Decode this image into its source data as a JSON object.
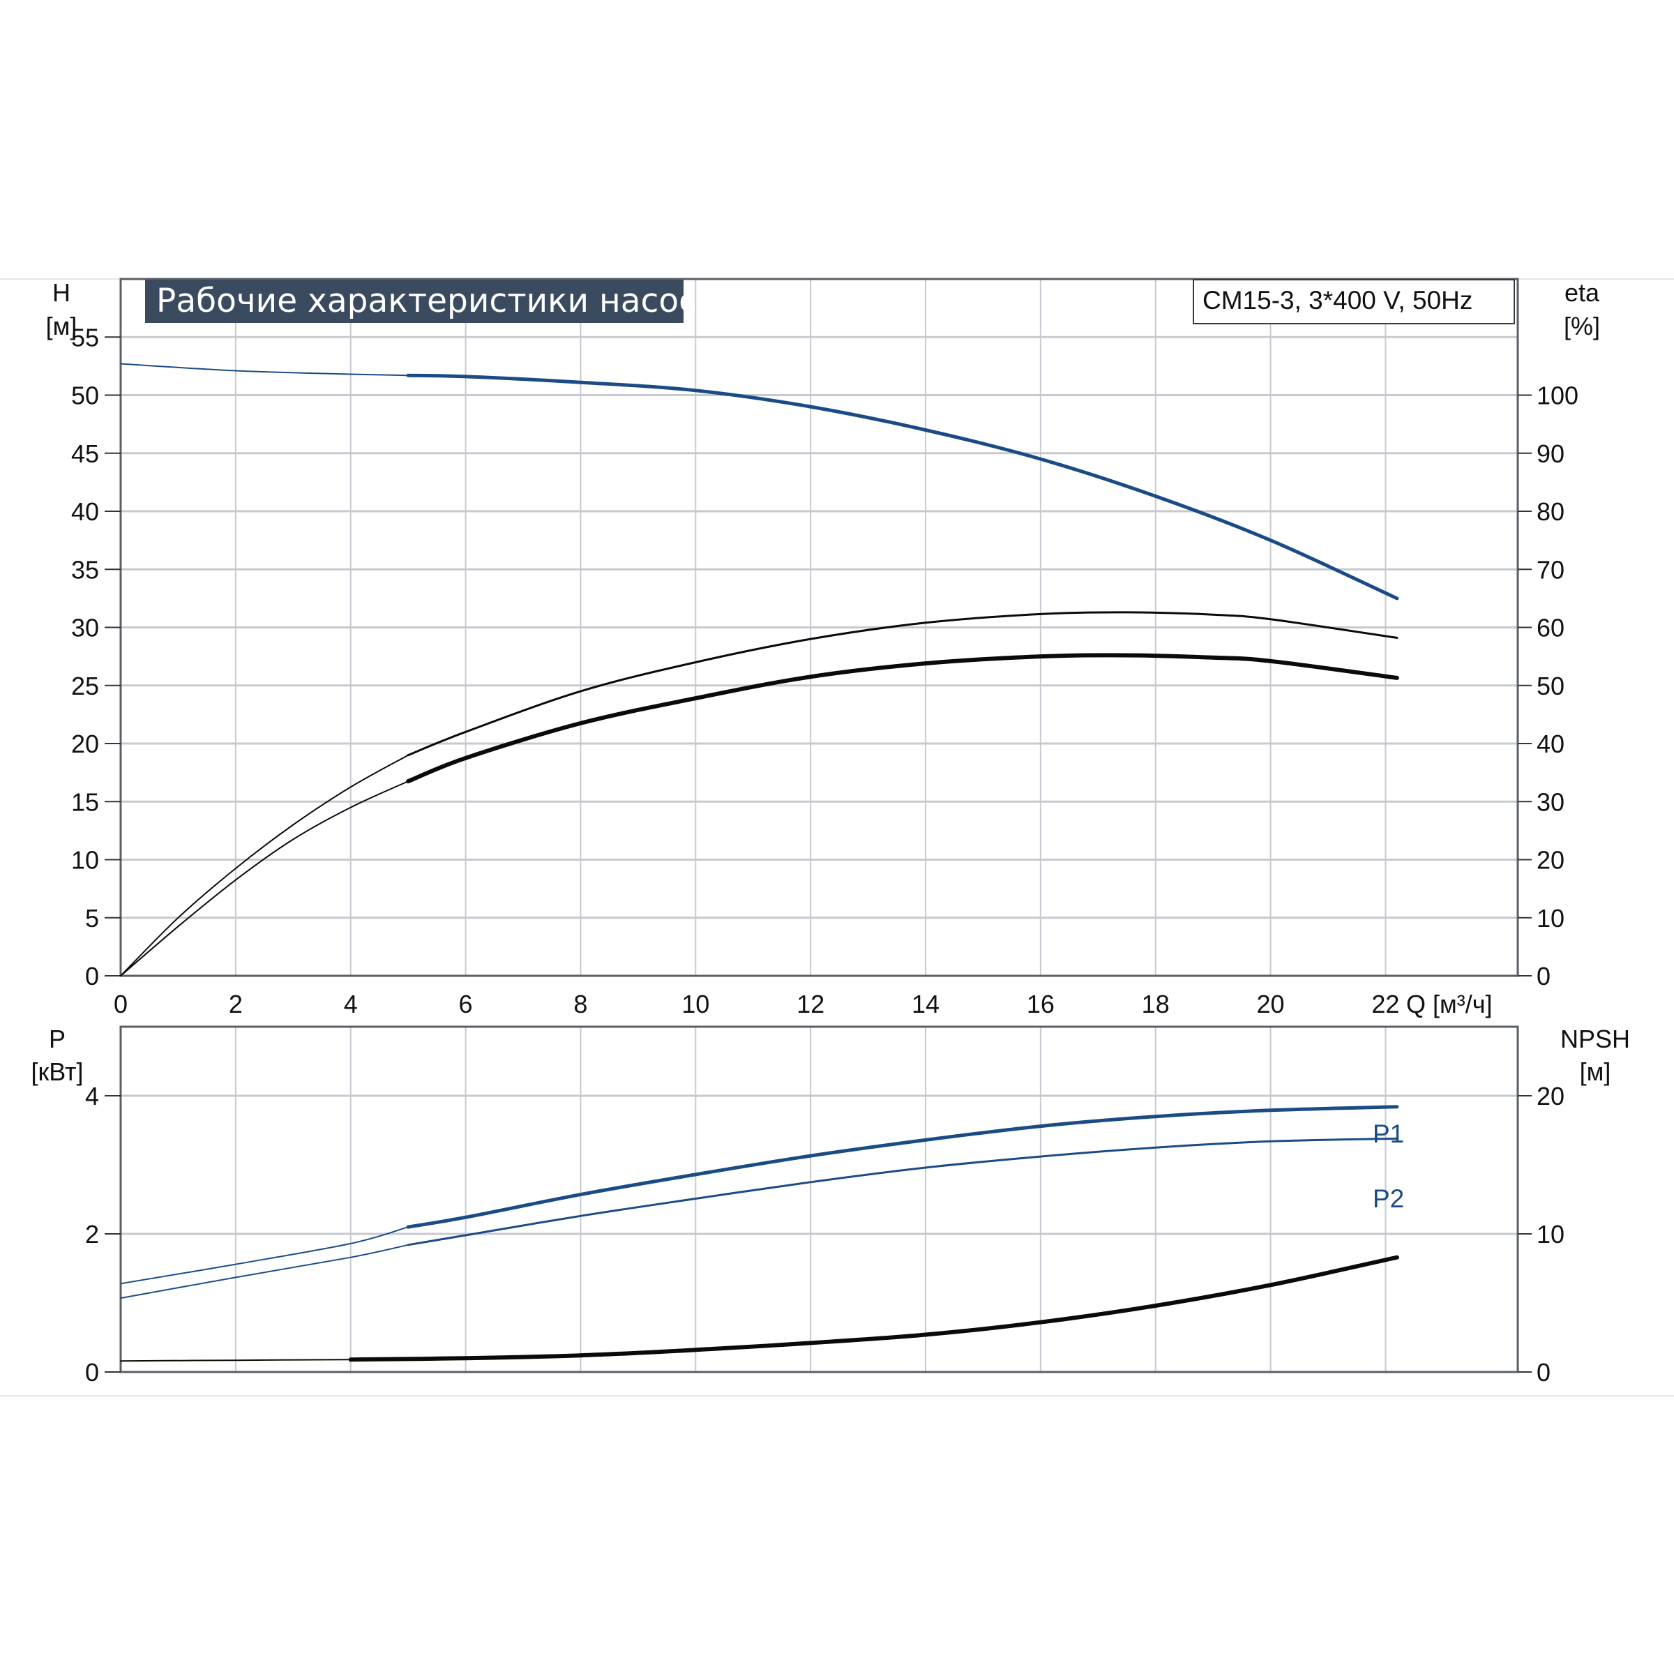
{
  "colors": {
    "blue": "#1b4b86",
    "black": "#0a0a0a",
    "grid": "#c6c9cf",
    "title_bg": "#3a4a5f",
    "title_fg": "#ffffff"
  },
  "title": "Рабочие характеристики насоса",
  "model": "CM15-3, 3*400 V, 50Hz",
  "chart_data": [
    {
      "type": "line",
      "panel": "top",
      "x_axis": {
        "label": "Q [м³/ч]",
        "ticks": [
          0,
          2,
          4,
          6,
          8,
          10,
          12,
          14,
          16,
          18,
          20,
          22
        ],
        "range": [
          0,
          24.3
        ]
      },
      "y_left": {
        "label_top": "H",
        "label_unit": "[м]",
        "ticks": [
          0,
          5,
          10,
          15,
          20,
          25,
          30,
          35,
          40,
          45,
          50,
          55
        ],
        "range": [
          0,
          60
        ]
      },
      "y_right": {
        "label_top": "eta",
        "label_unit": "[%]",
        "ticks": [
          0,
          10,
          20,
          30,
          40,
          50,
          60,
          70,
          80,
          90,
          100
        ],
        "range": [
          0,
          120
        ]
      },
      "grid": true,
      "series": [
        {
          "axis": "left",
          "color": "blue",
          "width": 5,
          "thin_until": 5,
          "points": [
            [
              0,
              52.7
            ],
            [
              2,
              52.1
            ],
            [
              4,
              51.8
            ],
            [
              5,
              51.7
            ],
            [
              6,
              51.6
            ],
            [
              8,
              51.1
            ],
            [
              10,
              50.4
            ],
            [
              12,
              49.0
            ],
            [
              14,
              47.0
            ],
            [
              16,
              44.5
            ],
            [
              18,
              41.3
            ],
            [
              20,
              37.5
            ],
            [
              22.2,
              32.5
            ]
          ]
        },
        {
          "axis": "right",
          "color": "black",
          "width": 3,
          "thin_until": 5,
          "points": [
            [
              0,
              0
            ],
            [
              1,
              10
            ],
            [
              2,
              18.5
            ],
            [
              3,
              26
            ],
            [
              4,
              32.5
            ],
            [
              5,
              38
            ],
            [
              6,
              42
            ],
            [
              8,
              49
            ],
            [
              10,
              54
            ],
            [
              12,
              58
            ],
            [
              14,
              60.8
            ],
            [
              16,
              62.3
            ],
            [
              17.5,
              62.6
            ],
            [
              19,
              62.2
            ],
            [
              20,
              61.4
            ],
            [
              22.2,
              58.2
            ]
          ]
        },
        {
          "axis": "right",
          "color": "black",
          "width": 6,
          "thin_until": 5,
          "points": [
            [
              0,
              0
            ],
            [
              1,
              8.5
            ],
            [
              2,
              16.5
            ],
            [
              3,
              23.5
            ],
            [
              4,
              29
            ],
            [
              5,
              33.5
            ],
            [
              6,
              37.5
            ],
            [
              8,
              43.5
            ],
            [
              10,
              47.8
            ],
            [
              12,
              51.5
            ],
            [
              14,
              53.8
            ],
            [
              16,
              55
            ],
            [
              17.5,
              55.2
            ],
            [
              19,
              54.8
            ],
            [
              20,
              54.2
            ],
            [
              22.2,
              51.3
            ]
          ]
        }
      ]
    },
    {
      "type": "line",
      "panel": "bottom",
      "x_axis": {
        "range": [
          0,
          24.3
        ]
      },
      "y_left": {
        "label_top": "P",
        "label_unit": "[кВт]",
        "ticks": [
          0,
          2,
          4
        ],
        "range": [
          0,
          5
        ]
      },
      "y_right": {
        "label_top": "NPSH",
        "label_unit": "[м]",
        "ticks": [
          0,
          10,
          20
        ],
        "range": [
          0,
          25
        ]
      },
      "grid": true,
      "series": [
        {
          "name": "P1",
          "axis": "left",
          "color": "blue",
          "width": 5,
          "thin_until": 5,
          "points": [
            [
              0,
              1.28
            ],
            [
              2,
              1.56
            ],
            [
              4,
              1.86
            ],
            [
              5,
              2.1
            ],
            [
              6,
              2.24
            ],
            [
              8,
              2.57
            ],
            [
              10,
              2.86
            ],
            [
              12,
              3.13
            ],
            [
              14,
              3.36
            ],
            [
              16,
              3.56
            ],
            [
              18,
              3.7
            ],
            [
              20,
              3.79
            ],
            [
              22.2,
              3.84
            ]
          ]
        },
        {
          "name": "P2",
          "axis": "left",
          "color": "blue",
          "width": 3,
          "thin_until": 5,
          "points": [
            [
              0,
              1.07
            ],
            [
              2,
              1.37
            ],
            [
              4,
              1.66
            ],
            [
              5,
              1.84
            ],
            [
              6,
              1.98
            ],
            [
              8,
              2.26
            ],
            [
              10,
              2.51
            ],
            [
              12,
              2.75
            ],
            [
              14,
              2.96
            ],
            [
              16,
              3.12
            ],
            [
              18,
              3.25
            ],
            [
              20,
              3.34
            ],
            [
              22.2,
              3.38
            ]
          ]
        },
        {
          "axis": "right",
          "color": "black",
          "width": 6,
          "thin_until": 4,
          "points": [
            [
              0,
              0.8
            ],
            [
              2,
              0.85
            ],
            [
              4,
              0.9
            ],
            [
              6,
              1.0
            ],
            [
              8,
              1.2
            ],
            [
              10,
              1.6
            ],
            [
              12,
              2.1
            ],
            [
              14,
              2.7
            ],
            [
              16,
              3.6
            ],
            [
              18,
              4.8
            ],
            [
              20,
              6.3
            ],
            [
              22.2,
              8.3
            ]
          ]
        }
      ]
    }
  ]
}
